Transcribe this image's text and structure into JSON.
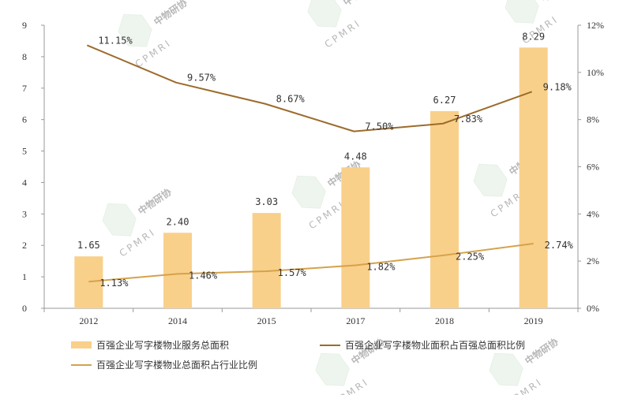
{
  "chart_data": {
    "type": "bar",
    "categories": [
      "2012",
      "2014",
      "2015",
      "2017",
      "2018",
      "2019"
    ],
    "series": [
      {
        "name": "百强企业写字楼物业服务总面积",
        "kind": "bar",
        "axis": "left",
        "values": [
          1.65,
          2.4,
          3.03,
          4.48,
          6.27,
          8.29
        ],
        "labels": [
          "1.65",
          "2.40",
          "3.03",
          "4.48",
          "6.27",
          "8.29"
        ],
        "color": "#f9d08a"
      },
      {
        "name": "百强企业写字楼物业面积占百强总面积比例",
        "kind": "line",
        "axis": "right",
        "values": [
          11.15,
          9.57,
          8.67,
          7.5,
          7.83,
          9.18
        ],
        "labels": [
          "11.15%",
          "9.57%",
          "8.67%",
          "7.50%",
          "7.83%",
          "9.18%"
        ],
        "color": "#9c6b2c"
      },
      {
        "name": "百强企业写字楼物业总面积占行业比例",
        "kind": "line",
        "axis": "right",
        "values": [
          1.13,
          1.46,
          1.57,
          1.82,
          2.25,
          2.74
        ],
        "labels": [
          "1.13%",
          "1.46%",
          "1.57%",
          "1.82%",
          "2.25%",
          "2.74%"
        ],
        "color": "#d4a24c"
      }
    ],
    "y_left": {
      "min": 0,
      "max": 9,
      "ticks": [
        "0",
        "1",
        "2",
        "3",
        "4",
        "5",
        "6",
        "7",
        "8",
        "9"
      ]
    },
    "y_right": {
      "min": 0,
      "max": 12,
      "ticks": [
        "0%",
        "2%",
        "4%",
        "6%",
        "8%",
        "10%",
        "12%"
      ]
    },
    "grid": false,
    "legend_position": "bottom",
    "watermark": "CPMRI 中物研协"
  }
}
